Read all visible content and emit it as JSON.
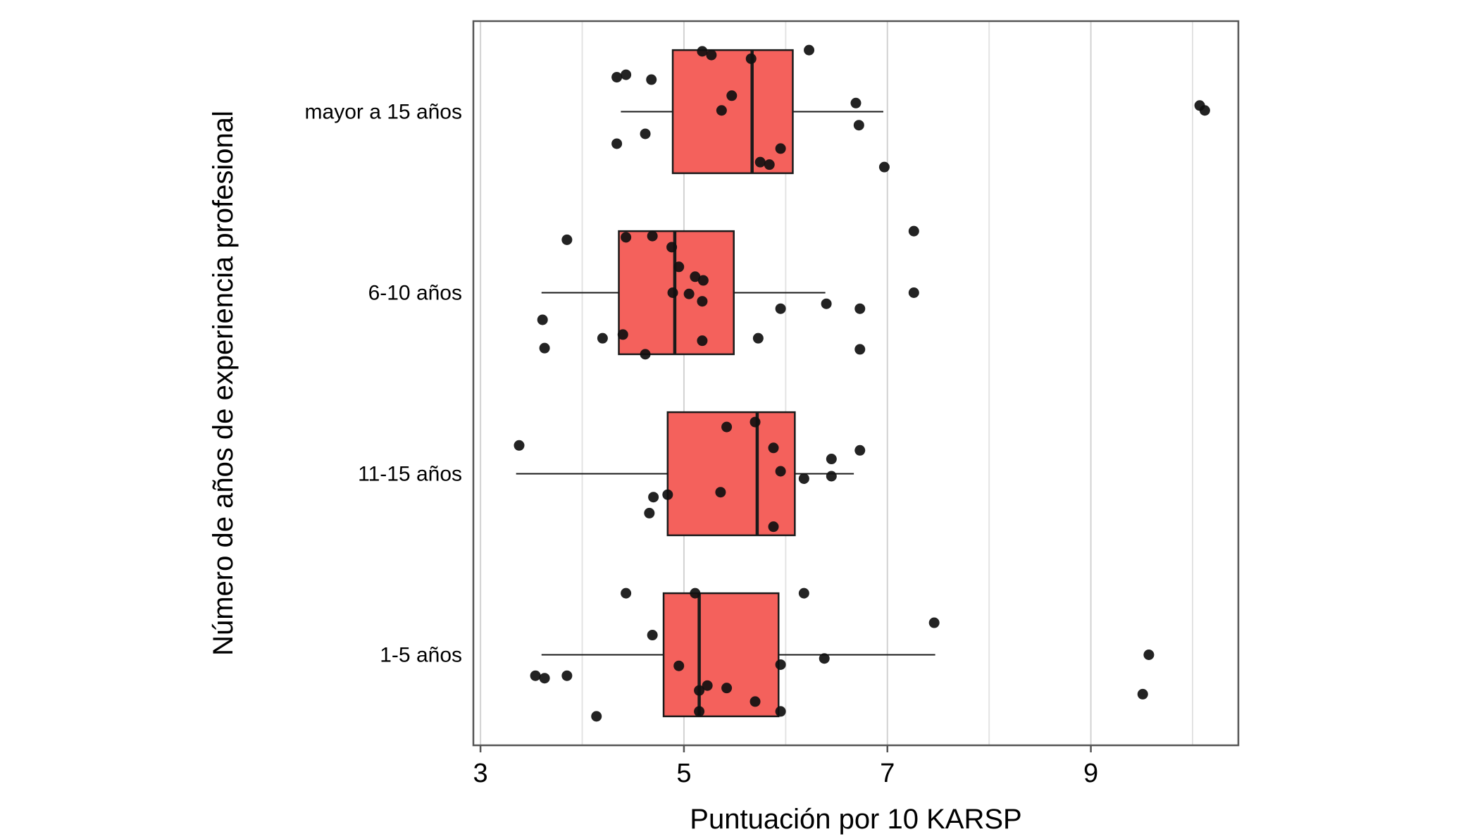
{
  "chart_data": {
    "type": "boxplot",
    "orientation": "horizontal",
    "title": "",
    "xlabel": "Puntuación por 10 KARSP",
    "ylabel": "Número de años de experiencia profesional",
    "xlim": [
      2.93,
      10.45
    ],
    "x_ticks": [
      3,
      5,
      7,
      9
    ],
    "x_minor_gridlines": [
      4,
      6,
      8,
      10
    ],
    "grid": "vertical-only",
    "legend": "none",
    "categories": [
      "mayor a 15 años",
      "6-10 años",
      "11-15 años",
      "1-5 años"
    ],
    "colors": {
      "box_fill": "#F4615C",
      "box_stroke": "#1a1a1a",
      "median_stroke": "#1a1a1a",
      "whisker_stroke": "#1a1a1a",
      "point_color": "#101010",
      "grid_major": "#d2d2d2",
      "grid_minor": "#e3e3e3",
      "panel_border": "#555555",
      "background": "#ffffff",
      "text": "#000000"
    },
    "boxes": [
      {
        "category": "mayor a 15 años",
        "whisker_low": 4.38,
        "q1": 4.89,
        "median": 5.67,
        "q3": 6.07,
        "whisker_high": 6.96,
        "points": [
          [
            5.18,
            -0.49
          ],
          [
            5.27,
            -0.46
          ],
          [
            6.23,
            -0.5
          ],
          [
            4.43,
            -0.3
          ],
          [
            4.34,
            -0.28
          ],
          [
            4.68,
            -0.26
          ],
          [
            5.66,
            -0.43
          ],
          [
            5.47,
            -0.13
          ],
          [
            5.37,
            -0.01
          ],
          [
            6.69,
            -0.07
          ],
          [
            10.07,
            -0.05
          ],
          [
            10.12,
            -0.01
          ],
          [
            4.62,
            0.18
          ],
          [
            4.34,
            0.26
          ],
          [
            6.72,
            0.11
          ],
          [
            5.95,
            0.3
          ],
          [
            5.75,
            0.41
          ],
          [
            5.84,
            0.43
          ],
          [
            6.97,
            0.45
          ]
        ]
      },
      {
        "category": "6-10 años",
        "whisker_low": 3.6,
        "q1": 4.36,
        "median": 4.91,
        "q3": 5.49,
        "whisker_high": 6.39,
        "points": [
          [
            3.85,
            -0.43
          ],
          [
            4.43,
            -0.45
          ],
          [
            4.69,
            -0.46
          ],
          [
            4.88,
            -0.37
          ],
          [
            4.95,
            -0.21
          ],
          [
            5.11,
            -0.13
          ],
          [
            5.19,
            -0.1
          ],
          [
            4.89,
            0
          ],
          [
            5.05,
            0.01
          ],
          [
            5.18,
            0.07
          ],
          [
            5.95,
            0.13
          ],
          [
            6.4,
            0.09
          ],
          [
            6.73,
            0.13
          ],
          [
            7.26,
            -0.5
          ],
          [
            7.26,
            0
          ],
          [
            4.2,
            0.37
          ],
          [
            4.4,
            0.34
          ],
          [
            3.61,
            0.22
          ],
          [
            3.63,
            0.45
          ],
          [
            4.62,
            0.5
          ],
          [
            5.18,
            0.39
          ],
          [
            5.73,
            0.37
          ],
          [
            6.73,
            0.46
          ]
        ]
      },
      {
        "category": "11-15 años",
        "whisker_low": 3.35,
        "q1": 4.84,
        "median": 5.72,
        "q3": 6.09,
        "whisker_high": 6.67,
        "points": [
          [
            3.38,
            -0.23
          ],
          [
            5.42,
            -0.38
          ],
          [
            5.7,
            -0.42
          ],
          [
            5.88,
            -0.21
          ],
          [
            6.45,
            -0.12
          ],
          [
            6.73,
            -0.19
          ],
          [
            6.18,
            0.04
          ],
          [
            6.45,
            0.02
          ],
          [
            5.95,
            -0.02
          ],
          [
            5.36,
            0.15
          ],
          [
            4.7,
            0.19
          ],
          [
            4.84,
            0.17
          ],
          [
            4.66,
            0.32
          ],
          [
            5.88,
            0.43
          ]
        ]
      },
      {
        "category": "1-5 años",
        "whisker_low": 3.6,
        "q1": 4.8,
        "median": 5.15,
        "q3": 5.93,
        "whisker_high": 7.47,
        "points": [
          [
            4.43,
            -0.5
          ],
          [
            5.11,
            -0.5
          ],
          [
            6.18,
            -0.5
          ],
          [
            7.46,
            -0.26
          ],
          [
            4.69,
            -0.16
          ],
          [
            4.95,
            0.09
          ],
          [
            6.38,
            0.03
          ],
          [
            9.57,
            0
          ],
          [
            3.54,
            0.17
          ],
          [
            3.63,
            0.19
          ],
          [
            3.85,
            0.17
          ],
          [
            5.15,
            0.29
          ],
          [
            5.23,
            0.25
          ],
          [
            5.42,
            0.27
          ],
          [
            5.7,
            0.38
          ],
          [
            5.95,
            0.08
          ],
          [
            9.51,
            0.32
          ],
          [
            5.15,
            0.46
          ],
          [
            5.95,
            0.46
          ],
          [
            4.14,
            0.5
          ]
        ]
      }
    ]
  }
}
